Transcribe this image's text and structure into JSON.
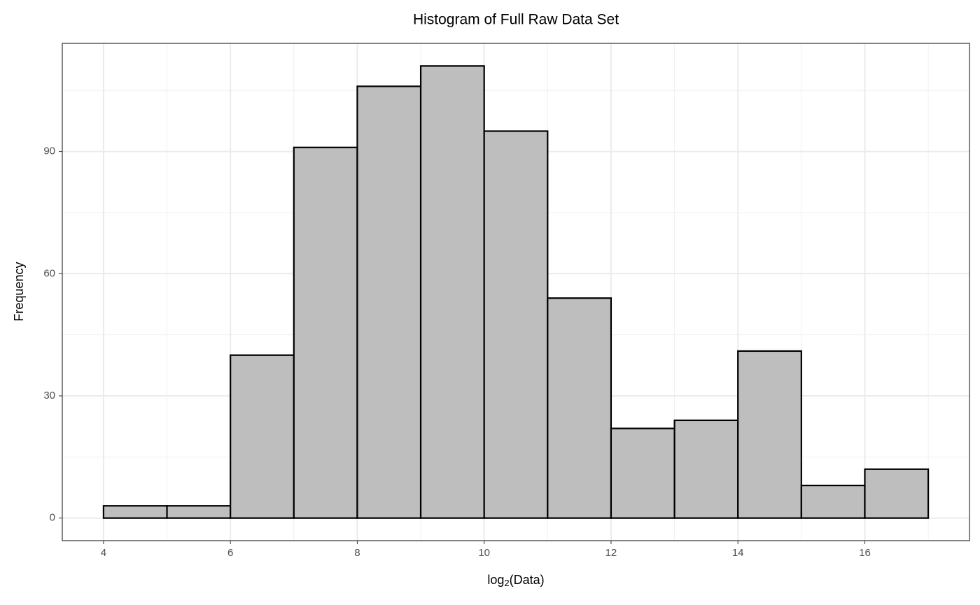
{
  "chart_data": {
    "type": "histogram",
    "title": "Histogram of Full Raw Data Set",
    "xlabel_parts": [
      "log",
      "2",
      "(Data)"
    ],
    "ylabel": "Frequency",
    "bins": [
      4,
      5,
      6,
      7,
      8,
      9,
      10,
      11,
      12,
      13,
      14,
      15,
      16,
      17
    ],
    "values": [
      3,
      3,
      40,
      91,
      106,
      111,
      95,
      54,
      22,
      24,
      41,
      8,
      12
    ],
    "color": "#bebebe",
    "edge_color": "#000000",
    "xlim": [
      3.35,
      17.65
    ],
    "ylim": [
      -5.55,
      116.55
    ],
    "xticks": [
      4,
      6,
      8,
      10,
      12,
      14,
      16
    ],
    "yticks": [
      0,
      30,
      60,
      90
    ],
    "x_minor_grid": [
      5,
      7,
      9,
      11,
      13,
      15,
      17
    ],
    "y_minor_grid": [
      15,
      45,
      75,
      105
    ],
    "grid": true
  }
}
